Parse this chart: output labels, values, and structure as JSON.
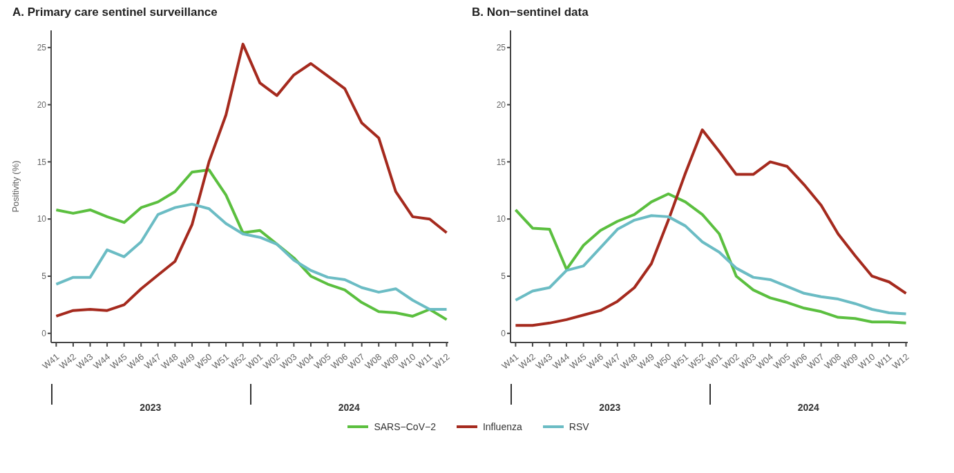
{
  "chart_data": [
    {
      "type": "line",
      "title": "A. Primary care sentinel surveillance",
      "ylabel": "Positivity (%)",
      "categories": [
        "W41",
        "W42",
        "W43",
        "W44",
        "W45",
        "W46",
        "W47",
        "W48",
        "W49",
        "W50",
        "W51",
        "W52",
        "W01",
        "W02",
        "W03",
        "W04",
        "W05",
        "W06",
        "W07",
        "W08",
        "W09",
        "W10",
        "W11",
        "W12"
      ],
      "series": [
        {
          "name": "SARS−CoV−2",
          "color": "#5bbf3f",
          "values": [
            10.8,
            10.5,
            10.8,
            10.2,
            9.7,
            11.0,
            11.5,
            12.4,
            14.1,
            14.3,
            12.1,
            8.8,
            9.0,
            7.8,
            6.6,
            5.0,
            4.3,
            3.8,
            2.7,
            1.9,
            1.8,
            1.5,
            2.1,
            1.2
          ]
        },
        {
          "name": "Influenza",
          "color": "#a52a1e",
          "values": [
            1.5,
            2.0,
            2.1,
            2.0,
            2.5,
            3.9,
            5.1,
            6.3,
            9.5,
            15.0,
            19.1,
            25.3,
            21.9,
            20.8,
            22.6,
            23.6,
            22.5,
            21.4,
            18.4,
            17.1,
            12.4,
            10.2,
            10.0,
            8.8
          ]
        },
        {
          "name": "RSV",
          "color": "#6bbcc4",
          "values": [
            4.3,
            4.9,
            4.9,
            7.3,
            6.7,
            8.0,
            10.4,
            11.0,
            11.3,
            10.9,
            9.6,
            8.7,
            8.4,
            7.8,
            6.4,
            5.5,
            4.9,
            4.7,
            4.0,
            3.6,
            3.9,
            2.9,
            2.1,
            2.1
          ]
        }
      ],
      "ylim": [
        -0.8,
        26.5
      ],
      "yticks": [
        0,
        5,
        10,
        15,
        20,
        25
      ],
      "grid": false,
      "legend": "bottom",
      "marker": "none",
      "line_style": "solid",
      "annotations": [
        "2023",
        "2024"
      ]
    },
    {
      "type": "line",
      "title": "B. Non−sentinel data",
      "categories": [
        "W41",
        "W42",
        "W43",
        "W44",
        "W45",
        "W46",
        "W47",
        "W48",
        "W49",
        "W50",
        "W51",
        "W52",
        "W01",
        "W02",
        "W03",
        "W04",
        "W05",
        "W06",
        "W07",
        "W08",
        "W09",
        "W10",
        "W11",
        "W12"
      ],
      "series": [
        {
          "color": "#5bbf3f",
          "values": [
            10.8,
            9.2,
            9.1,
            5.6,
            7.7,
            9.0,
            9.8,
            10.4,
            11.5,
            12.2,
            11.5,
            10.4,
            8.7,
            5.0,
            3.8,
            3.1,
            2.7,
            2.2,
            1.9,
            1.4,
            1.3,
            1.0,
            1.0,
            0.9
          ]
        },
        {
          "color": "#a52a1e",
          "values": [
            0.7,
            0.7,
            0.9,
            1.2,
            1.6,
            2.0,
            2.8,
            4.0,
            6.1,
            9.9,
            14.0,
            17.8,
            15.9,
            13.9,
            13.9,
            15.0,
            14.6,
            13.0,
            11.2,
            8.7,
            6.8,
            5.0,
            4.5,
            3.5
          ]
        },
        {
          "color": "#6bbcc4",
          "values": [
            2.9,
            3.7,
            4.0,
            5.5,
            5.9,
            7.5,
            9.1,
            9.9,
            10.3,
            10.2,
            9.4,
            8.0,
            7.1,
            5.7,
            4.9,
            4.7,
            4.1,
            3.5,
            3.2,
            3.0,
            2.6,
            2.1,
            1.8,
            1.7
          ]
        }
      ],
      "ylim": [
        -0.8,
        26.5
      ],
      "yticks": [
        0,
        5,
        10,
        15,
        20,
        25
      ],
      "grid": false,
      "marker": "none",
      "line_style": "solid",
      "annotations": [
        "2023",
        "2024"
      ]
    }
  ]
}
